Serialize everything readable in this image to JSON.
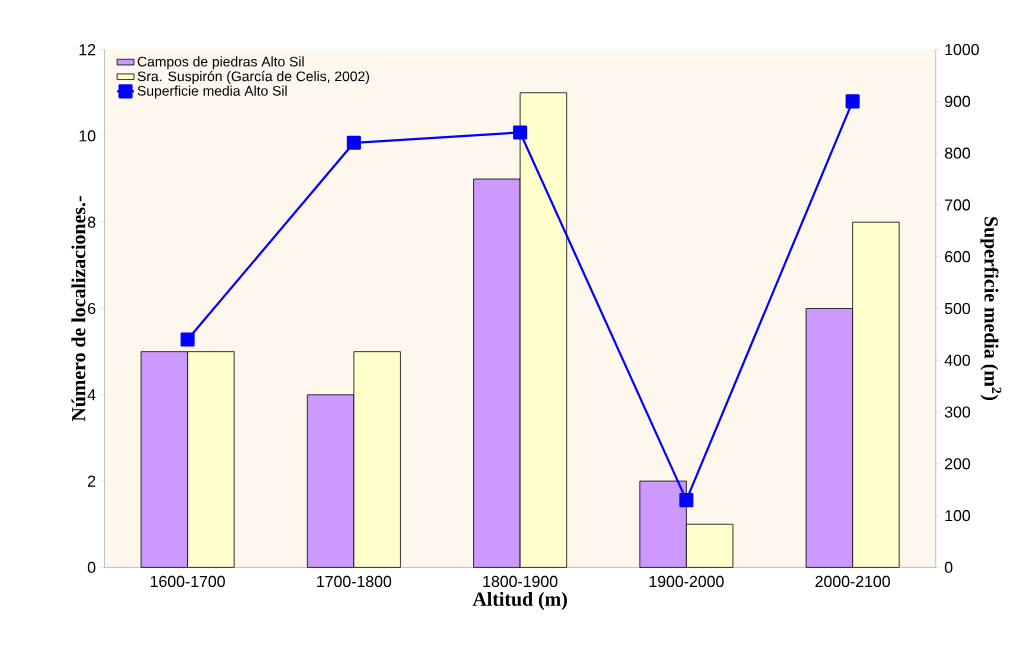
{
  "chart_data": {
    "type": "bar",
    "xlabel": "Altitud (m)",
    "ylabel": "Número de localizaciones.-",
    "y2label": "Superficie media (m$^{2}$)",
    "categories": [
      "1600-1700",
      "1700-1800",
      "1800-1900",
      "1900-2000",
      "2000-2100"
    ],
    "series": [
      {
        "name": "Campos de piedras Alto Sil",
        "color": "#cc99ff",
        "values": [
          5,
          4,
          9,
          2,
          6
        ]
      },
      {
        "name": "Sra. Suspirón (García de Celis, 2002)",
        "color": "#ffffcc",
        "values": [
          5,
          5,
          11,
          1,
          8
        ]
      },
      {
        "name": "Superficie media Alto Sil",
        "type": "line",
        "axis": "y2",
        "color": "#0000ff",
        "marker": "square",
        "values": [
          440,
          820,
          840,
          130,
          900
        ]
      }
    ],
    "ylim": [
      0,
      12
    ],
    "yticks": [
      0,
      2,
      4,
      6,
      8,
      10,
      12
    ],
    "y2lim": [
      0,
      1000
    ],
    "y2ticks": [
      0,
      100,
      200,
      300,
      400,
      500,
      600,
      700,
      800,
      900,
      1000
    ],
    "legend": "top left"
  }
}
